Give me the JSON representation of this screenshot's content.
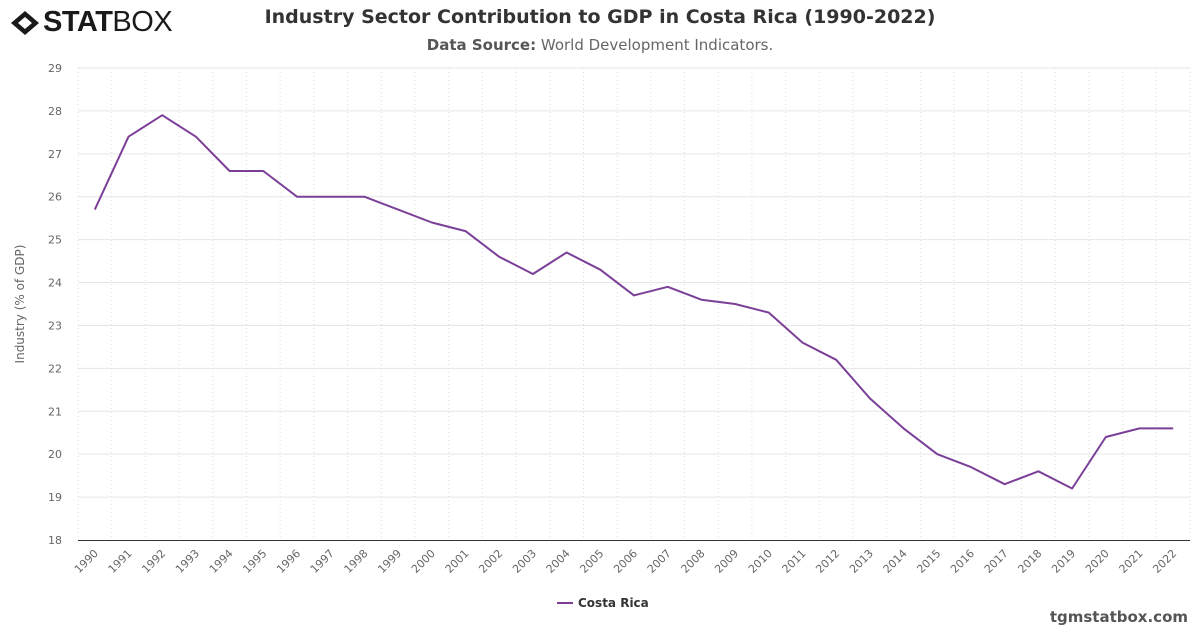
{
  "header": {
    "logo": "STATBOX",
    "title": "Industry Sector Contribution to GDP in Costa Rica (1990-2022)",
    "source_label": "Data Source:",
    "source_value": "World Development Indicators."
  },
  "credit": "tgmstatbox.com",
  "chart_data": {
    "type": "line",
    "title": "Industry Sector Contribution to GDP in Costa Rica (1990-2022)",
    "ylabel": "Industry (% of GDP)",
    "xlabel": "",
    "ylim": [
      18,
      29
    ],
    "yticks": [
      18,
      19,
      20,
      21,
      22,
      23,
      24,
      25,
      26,
      27,
      28,
      29
    ],
    "grid": true,
    "legend_position": "bottom",
    "x": [
      "1990",
      "1991",
      "1992",
      "1993",
      "1994",
      "1995",
      "1996",
      "1997",
      "1998",
      "1999",
      "2000",
      "2001",
      "2002",
      "2003",
      "2004",
      "2005",
      "2006",
      "2007",
      "2008",
      "2009",
      "2010",
      "2011",
      "2012",
      "2013",
      "2014",
      "2015",
      "2016",
      "2017",
      "2018",
      "2019",
      "2020",
      "2021",
      "2022"
    ],
    "series": [
      {
        "name": "Costa Rica",
        "color": "#7b3f98",
        "values": [
          25.7,
          27.4,
          27.9,
          27.4,
          26.6,
          26.6,
          26.0,
          26.0,
          26.0,
          25.7,
          25.4,
          25.2,
          24.6,
          24.2,
          24.7,
          24.3,
          23.7,
          23.9,
          23.6,
          23.5,
          23.3,
          22.6,
          22.2,
          21.3,
          20.6,
          20.0,
          19.7,
          19.3,
          19.6,
          19.2,
          20.4,
          20.6,
          20.6
        ]
      }
    ]
  }
}
